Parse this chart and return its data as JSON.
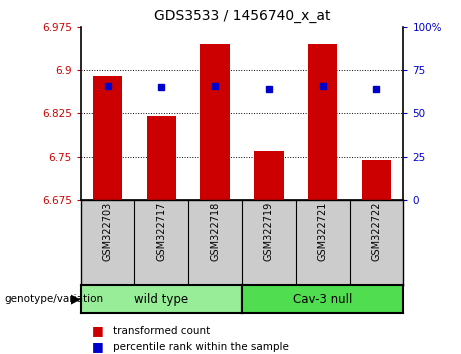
{
  "title": "GDS3533 / 1456740_x_at",
  "samples": [
    "GSM322703",
    "GSM322717",
    "GSM322718",
    "GSM322719",
    "GSM322721",
    "GSM322722"
  ],
  "bar_values": [
    6.89,
    6.82,
    6.945,
    6.76,
    6.945,
    6.745
  ],
  "percentile_values": [
    66,
    65,
    66,
    64,
    66,
    64
  ],
  "ylim_left": [
    6.675,
    6.975
  ],
  "ylim_right": [
    0,
    100
  ],
  "yticks_left": [
    6.675,
    6.75,
    6.825,
    6.9,
    6.975
  ],
  "ytick_labels_left": [
    "6.675",
    "6.75",
    "6.825",
    "6.9",
    "6.975"
  ],
  "yticks_right": [
    0,
    25,
    50,
    75,
    100
  ],
  "ytick_labels_right": [
    "0",
    "25",
    "50",
    "75",
    "100%"
  ],
  "gridlines": [
    6.9,
    6.825,
    6.75
  ],
  "bar_color": "#cc0000",
  "percentile_color": "#0000cc",
  "bar_base": 6.675,
  "group1_label": "wild type",
  "group2_label": "Cav-3 null",
  "group1_color": "#98ee98",
  "group2_color": "#50dd50",
  "genotype_label": "genotype/variation",
  "legend_bar_label": "transformed count",
  "legend_percentile_label": "percentile rank within the sample",
  "left_tick_color": "#cc0000",
  "right_tick_color": "#0000cc",
  "bar_width": 0.55,
  "fig_width": 4.61,
  "fig_height": 3.54,
  "tick_area_color": "#cccccc"
}
